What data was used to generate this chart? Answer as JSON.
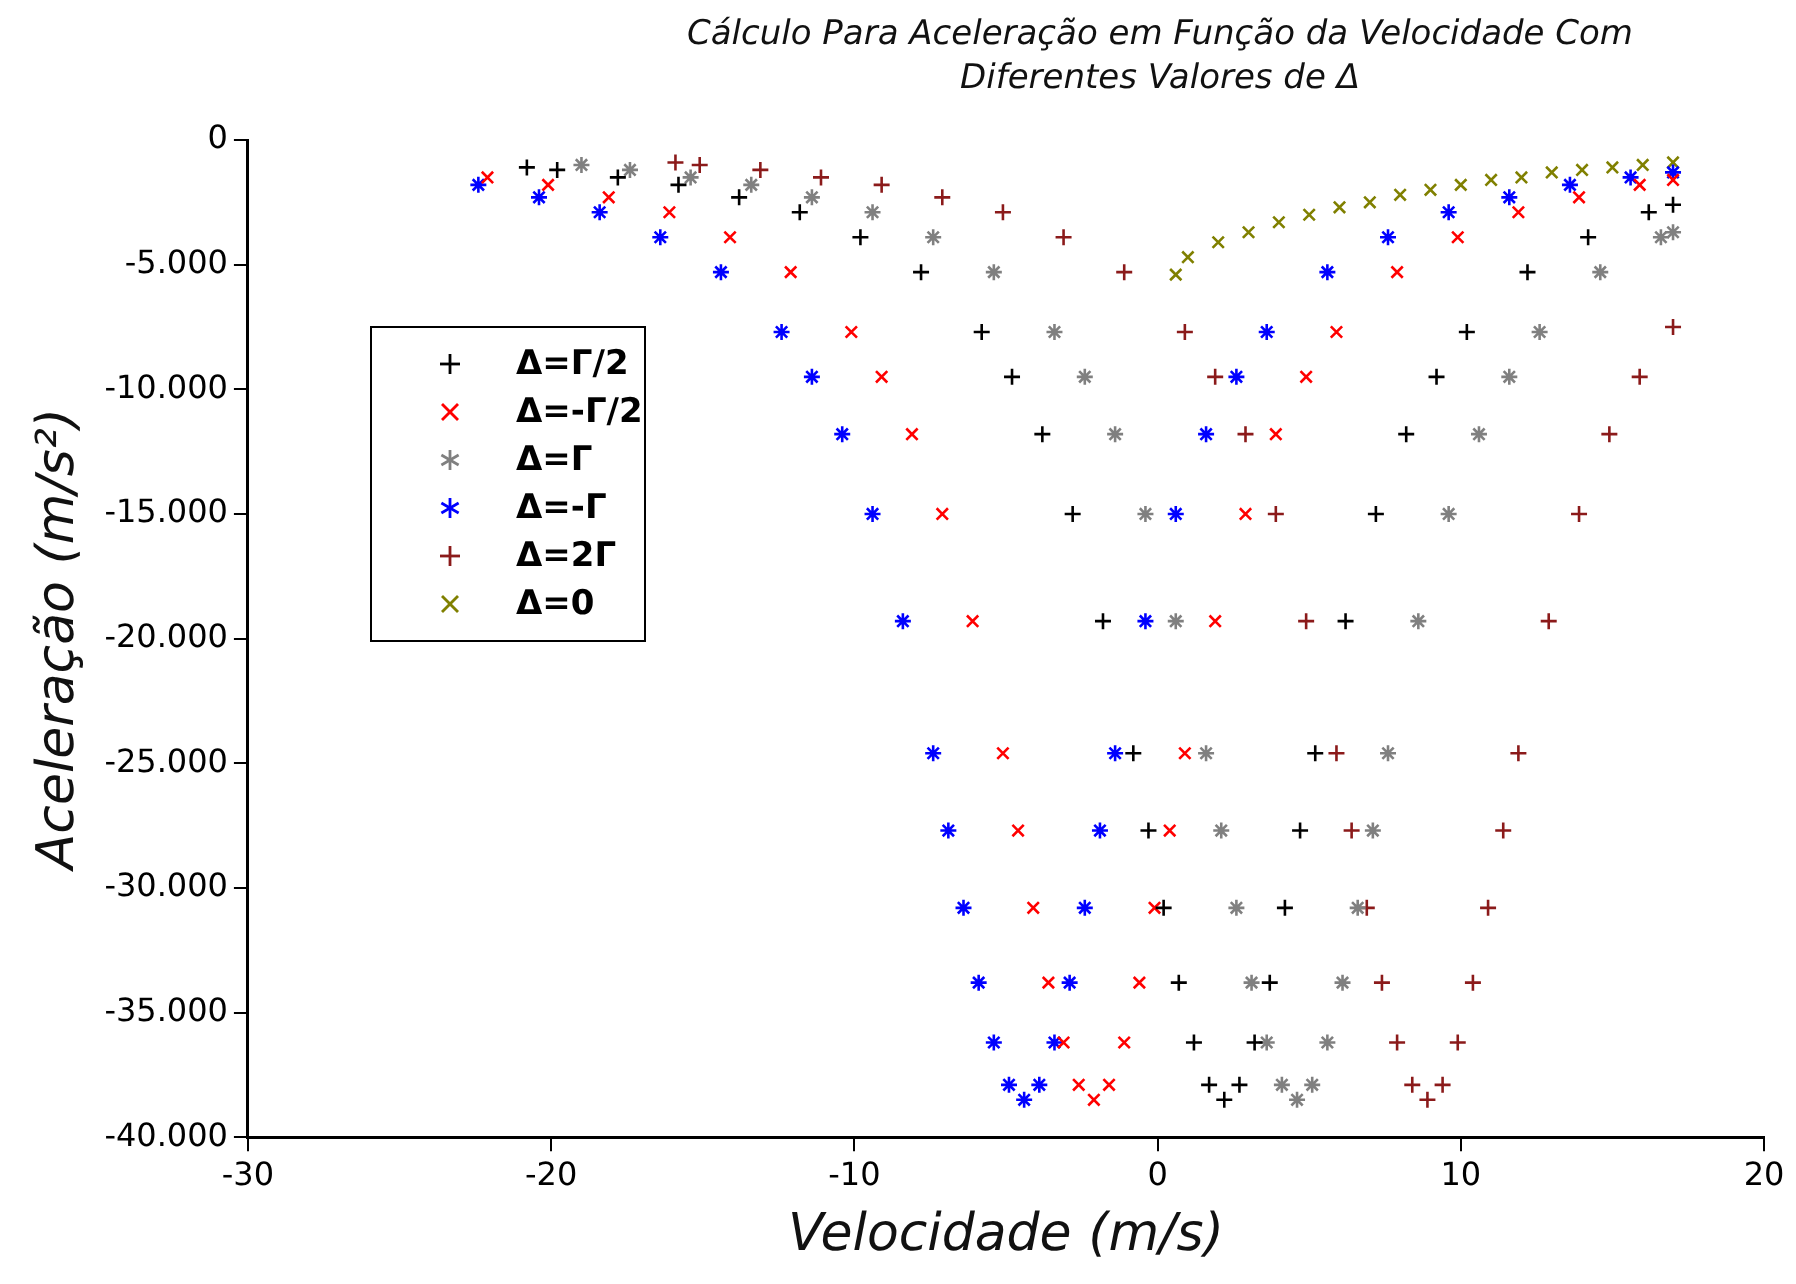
{
  "chart_data": {
    "type": "scatter",
    "title": "Cálculo Para Aceleração em Função da Velocidade Com Diferentes Valores de Δ",
    "xlabel": "Velocidade (m/s)",
    "ylabel": "Aceleração (m/s²)",
    "xlim": [
      -30,
      20
    ],
    "xticks": [
      -30,
      -20,
      -10,
      0,
      10,
      20
    ],
    "ylim": [
      -40000,
      0
    ],
    "yticks": [
      0,
      {
        "value": -5000,
        "label": "-5.000"
      },
      {
        "value": -10000,
        "label": "-10.000"
      },
      {
        "value": -15000,
        "label": "-15.000"
      },
      {
        "value": -20000,
        "label": "-20.000"
      },
      {
        "value": -25000,
        "label": "-25.000"
      },
      {
        "value": -30000,
        "label": "-30.000"
      },
      {
        "value": -35000,
        "label": "-35.000"
      },
      {
        "value": -40000,
        "label": "-40.000"
      }
    ],
    "grid": false,
    "legend": "left",
    "series": [
      {
        "name": "Δ=Γ/2",
        "color": "#000000",
        "marker": "cross",
        "x": [
          -20.8,
          -19.8,
          -17.8,
          -15.8,
          -13.8,
          -11.8,
          -9.8,
          -7.8,
          -5.8,
          -4.8,
          -3.8,
          -2.8,
          -1.8,
          -0.8,
          -0.3,
          0.2,
          0.7,
          1.2,
          1.7,
          2.2,
          2.7,
          3.2,
          3.7,
          4.2,
          4.7,
          5.2,
          6.2,
          7.2,
          8.2,
          9.2,
          10.2,
          12.2,
          14.2,
          16.2,
          17
        ],
        "values": [
          -1100,
          -1200,
          -1500,
          -1800,
          -2300,
          -2900,
          -3900,
          -5300,
          -7700,
          -9500,
          -11800,
          -15000,
          -19300,
          -24600,
          -27700,
          -30800,
          -33800,
          -36200,
          -37900,
          -38500,
          -37900,
          -36200,
          -33800,
          -30800,
          -27700,
          -24600,
          -19300,
          -15000,
          -11800,
          -9500,
          -7700,
          -5300,
          -3900,
          -2900,
          -2600
        ]
      },
      {
        "name": "Δ=-Γ/2",
        "color": "#ff0000",
        "marker": "x",
        "x": [
          -22.1,
          -20.1,
          -18.1,
          -16.1,
          -14.1,
          -12.1,
          -10.1,
          -9.1,
          -8.1,
          -7.1,
          -6.1,
          -5.1,
          -4.6,
          -4.1,
          -3.6,
          -3.1,
          -2.6,
          -2.1,
          -1.6,
          -1.1,
          -0.6,
          -0.1,
          0.4,
          0.9,
          1.9,
          2.9,
          3.9,
          4.9,
          5.9,
          7.9,
          9.9,
          11.9,
          13.9,
          15.9,
          17
        ],
        "values": [
          -1500,
          -1800,
          -2300,
          -2900,
          -3900,
          -5300,
          -7700,
          -9500,
          -11800,
          -15000,
          -19300,
          -24600,
          -27700,
          -30800,
          -33800,
          -36200,
          -37900,
          -38500,
          -37900,
          -36200,
          -33800,
          -30800,
          -27700,
          -24600,
          -19300,
          -15000,
          -11800,
          -9500,
          -7700,
          -5300,
          -3900,
          -2900,
          -2300,
          -1800,
          -1600
        ]
      },
      {
        "name": "Δ=Γ",
        "color": "#808080",
        "x": [
          -19,
          -17.4,
          -15.4,
          -13.4,
          -11.4,
          -9.4,
          -7.4,
          -5.4,
          -3.4,
          -2.4,
          -1.4,
          -0.4,
          0.6,
          1.6,
          2.1,
          2.6,
          3.1,
          3.6,
          4.1,
          4.6,
          5.1,
          5.6,
          6.1,
          6.6,
          7.1,
          7.6,
          8.6,
          9.6,
          10.6,
          11.6,
          12.6,
          14.6,
          16.6,
          17
        ],
        "values": [
          -1000,
          -1200,
          -1500,
          -1800,
          -2300,
          -2900,
          -3900,
          -5300,
          -7700,
          -9500,
          -11800,
          -15000,
          -19300,
          -24600,
          -27700,
          -30800,
          -33800,
          -36200,
          -37900,
          -38500,
          -37900,
          -36200,
          -33800,
          -30800,
          -27700,
          -24600,
          -19300,
          -15000,
          -11800,
          -9500,
          -7700,
          -5300,
          -3900,
          -3700
        ]
      },
      {
        "name": "Δ=-Γ",
        "color": "#0000ff",
        "x": [
          -22.4,
          -20.4,
          -18.4,
          -16.4,
          -14.4,
          -12.4,
          -11.4,
          -10.4,
          -9.4,
          -8.4,
          -7.4,
          -6.9,
          -6.4,
          -5.9,
          -5.4,
          -4.9,
          -4.4,
          -3.9,
          -3.4,
          -2.9,
          -2.4,
          -1.9,
          -1.4,
          -0.4,
          0.6,
          1.6,
          2.6,
          3.6,
          5.6,
          7.6,
          9.6,
          11.6,
          13.6,
          15.6,
          17
        ],
        "values": [
          -1800,
          -2300,
          -2900,
          -3900,
          -5300,
          -7700,
          -9500,
          -11800,
          -15000,
          -19300,
          -24600,
          -27700,
          -30800,
          -33800,
          -36200,
          -37900,
          -38500,
          -37900,
          -36200,
          -33800,
          -30800,
          -27700,
          -24600,
          -19300,
          -15000,
          -11800,
          -9500,
          -7700,
          -5300,
          -3900,
          -2900,
          -2300,
          -1800,
          -1500,
          -1300
        ]
      },
      {
        "name": "Δ=2Γ",
        "color": "#8b1a1a",
        "marker": "cross",
        "x": [
          -15.9,
          -15.1,
          -13.1,
          -11.1,
          -9.1,
          -7.1,
          -5.1,
          -3.1,
          -1.1,
          0.9,
          1.9,
          2.9,
          3.9,
          4.9,
          5.9,
          6.4,
          6.9,
          7.4,
          7.9,
          8.4,
          8.9,
          9.4,
          9.9,
          10.4,
          10.9,
          11.4,
          11.9,
          12.9,
          13.9,
          14.9,
          15.9,
          17
        ],
        "values": [
          -900,
          -1000,
          -1200,
          -1500,
          -1800,
          -2300,
          -2900,
          -3900,
          -5300,
          -7700,
          -9500,
          -11800,
          -15000,
          -19300,
          -24600,
          -27700,
          -30800,
          -33800,
          -36200,
          -37900,
          -38500,
          -37900,
          -36200,
          -33800,
          -30800,
          -27700,
          -24600,
          -19300,
          -15000,
          -11800,
          -9500,
          -7500
        ]
      },
      {
        "name": "Δ=0",
        "color": "#808000",
        "marker": "x",
        "x": [
          0.6,
          1,
          2,
          3,
          4,
          5,
          6,
          7,
          8,
          9,
          10,
          11,
          12,
          13,
          14,
          15,
          16,
          17
        ],
        "values": [
          -5400,
          -4700,
          -4100,
          -3700,
          -3300,
          -3000,
          -2700,
          -2500,
          -2200,
          -2000,
          -1800,
          -1600,
          -1500,
          -1300,
          -1200,
          -1100,
          -1000,
          -900
        ]
      }
    ]
  }
}
